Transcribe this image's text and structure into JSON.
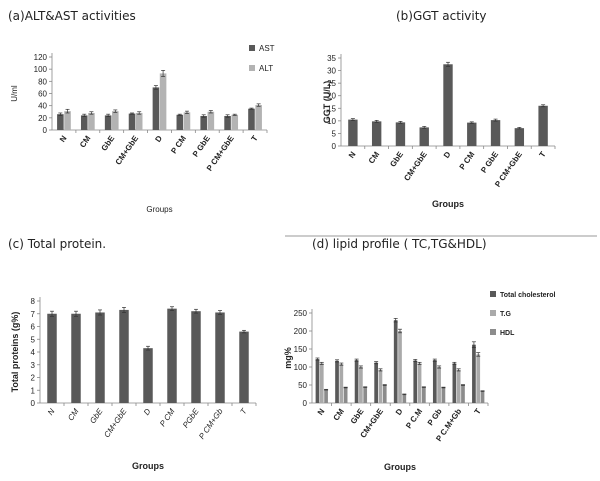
{
  "chart_data": [
    {
      "type": "bar",
      "title": "(a)ALT&AST activities",
      "xlabel": "Groups",
      "ylabel": "U/ml",
      "ylim": [
        0,
        120
      ],
      "yticks": [
        0,
        20,
        40,
        60,
        80,
        100,
        120
      ],
      "categories": [
        "N",
        "CM",
        "GbE",
        "CM+GbE",
        "D",
        "P CM",
        "P GbE",
        "P CM+GbE",
        "T"
      ],
      "series": [
        {
          "name": "AST",
          "color": "#595959",
          "values": [
            26,
            24,
            24,
            27,
            70,
            25,
            23,
            23,
            35
          ],
          "errors": [
            2,
            2,
            2,
            1,
            3,
            1,
            2,
            2,
            1
          ]
        },
        {
          "name": "ALT",
          "color": "#b3b3b3",
          "values": [
            31,
            28,
            31,
            28,
            93,
            29,
            30,
            25,
            41
          ],
          "errors": [
            3,
            2,
            2,
            2,
            5,
            2,
            2,
            1,
            2
          ]
        }
      ],
      "legend": "top-right",
      "grid": false
    },
    {
      "type": "bar",
      "title": "(b)GGT activity",
      "xlabel": "Groups",
      "ylabel": "GGT (U/L)",
      "ylim": [
        0,
        35
      ],
      "yticks": [
        0,
        5,
        10,
        15,
        20,
        25,
        30,
        35
      ],
      "categories": [
        "N",
        "CM",
        "GbE",
        "CM+GbE",
        "D",
        "P CM",
        "P GbE",
        "P CM+GbE",
        "T"
      ],
      "series": [
        {
          "name": "",
          "color": "#595959",
          "values": [
            10.5,
            9.8,
            9.4,
            7.4,
            32.5,
            9.3,
            10.3,
            7.1,
            16
          ],
          "errors": [
            0.4,
            0.4,
            0.4,
            0.4,
            0.8,
            0.3,
            0.4,
            0.3,
            0.4
          ]
        }
      ],
      "grid": false
    },
    {
      "type": "bar",
      "title": "(c) Total protein.",
      "xlabel": "Groups",
      "ylabel": "Total proteins (g%)",
      "ylim": [
        0,
        8
      ],
      "yticks": [
        0,
        1,
        2,
        3,
        4,
        5,
        6,
        7,
        8
      ],
      "categories": [
        "N",
        "CM",
        "GbE",
        "CM+GbE",
        "D",
        "P CM",
        "PGbE",
        "P CM+Gb",
        "T"
      ],
      "series": [
        {
          "name": "",
          "color": "#595959",
          "values": [
            7.0,
            7.0,
            7.1,
            7.3,
            4.3,
            7.4,
            7.2,
            7.1,
            5.6
          ],
          "errors": [
            0.2,
            0.2,
            0.2,
            0.2,
            0.15,
            0.15,
            0.15,
            0.15,
            0.1
          ]
        }
      ],
      "grid": false
    },
    {
      "type": "bar",
      "title": "(d) lipid profile ( TC,TG&HDL)",
      "xlabel": "Groups",
      "ylabel": "mg%",
      "ylim": [
        0,
        250
      ],
      "yticks": [
        0,
        50,
        100,
        150,
        200,
        250
      ],
      "categories": [
        "N",
        "CM",
        "GbE",
        "CM+GbE",
        "D",
        "P C.M",
        "P Gb",
        "P C.M+Gb",
        "T"
      ],
      "series": [
        {
          "name": "Total cholesterol",
          "color": "#595959",
          "values": [
            122,
            117,
            119,
            112,
            230,
            118,
            119,
            110,
            162
          ],
          "errors": [
            3,
            3,
            3,
            3,
            5,
            3,
            3,
            3,
            8
          ]
        },
        {
          "name": "T.G",
          "color": "#aaaaaa",
          "values": [
            110,
            108,
            100,
            92,
            200,
            110,
            100,
            92,
            135
          ],
          "errors": [
            3,
            3,
            3,
            3,
            5,
            3,
            3,
            3,
            5
          ]
        },
        {
          "name": "HDL",
          "color": "#8c8c8c",
          "values": [
            37,
            43,
            44,
            50,
            24,
            44,
            43,
            50,
            33
          ],
          "errors": [
            1,
            1,
            1,
            1,
            1,
            1,
            1,
            1,
            1
          ]
        }
      ],
      "legend": "top-right",
      "grid": false
    }
  ]
}
